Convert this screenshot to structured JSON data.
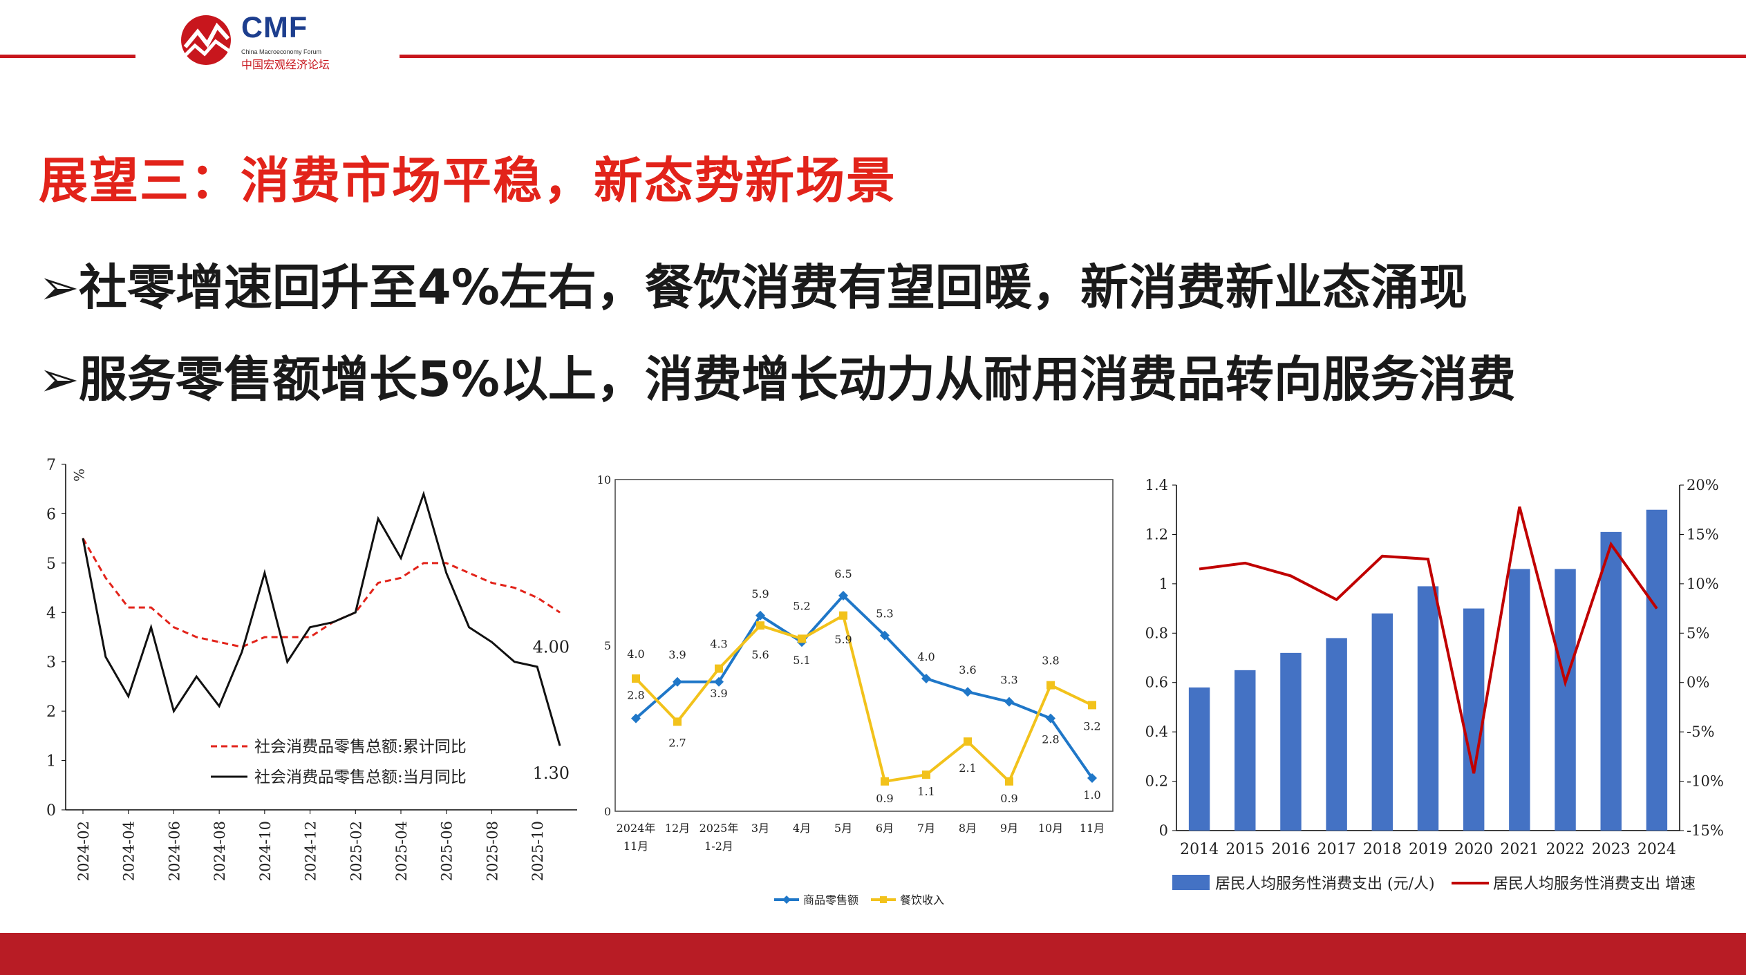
{
  "header": {
    "logo_name": "CMF",
    "logo_sub": "China Macroeconomy Forum",
    "logo_cn": "中国宏观经济论坛"
  },
  "title": "展望三：消费市场平稳，新态势新场景",
  "bullets": [
    "社零增速回升至4%左右，餐饮消费有望回暖，新消费新业态涌现",
    "服务零售额增长5%以上，消费增长动力从耐用消费品转向服务消费"
  ],
  "colors": {
    "accent": "#e2231a",
    "brand": "#1d3e8e",
    "footer": "#b81c25"
  },
  "chart_data": [
    {
      "type": "line",
      "ylabel": "%",
      "ylim": [
        0,
        7
      ],
      "yticks": [
        "0",
        "1",
        "2",
        "3",
        "4",
        "5",
        "6",
        "7"
      ],
      "x": [
        "2024-02",
        "2024-03",
        "2024-04",
        "2024-05",
        "2024-06",
        "2024-07",
        "2024-08",
        "2024-09",
        "2024-10",
        "2024-11",
        "2024-12",
        "2025-01",
        "2025-02",
        "2025-03",
        "2025-04",
        "2025-05",
        "2025-06",
        "2025-07",
        "2025-08",
        "2025-09",
        "2025-10",
        "2025-11"
      ],
      "xticks": [
        "2024-02",
        "2024-04",
        "2024-06",
        "2024-08",
        "2024-10",
        "2024-12",
        "2025-02",
        "2025-04",
        "2025-06",
        "2025-08",
        "2025-10"
      ],
      "series": [
        {
          "name": "社会消费品零售总额:累计同比",
          "color": "#e2231a",
          "dashed": true,
          "values": [
            5.5,
            4.7,
            4.1,
            4.1,
            3.7,
            3.5,
            3.4,
            3.3,
            3.5,
            3.5,
            3.5,
            3.8,
            4.0,
            4.6,
            4.7,
            5.0,
            5.0,
            4.8,
            4.6,
            4.5,
            4.3,
            4.0
          ]
        },
        {
          "name": "社会消费品零售总额:当月同比",
          "color": "#111111",
          "dashed": false,
          "values": [
            5.5,
            3.1,
            2.3,
            3.7,
            2.0,
            2.7,
            2.1,
            3.2,
            4.8,
            3.0,
            3.7,
            3.8,
            4.0,
            5.9,
            5.1,
            6.4,
            4.8,
            3.7,
            3.4,
            3.0,
            2.9,
            1.3
          ]
        }
      ],
      "end_labels": [
        "4.00",
        "1.30"
      ]
    },
    {
      "type": "line",
      "ylim": [
        0,
        10
      ],
      "yticks": [
        "0",
        "5",
        "10"
      ],
      "categories": [
        "2024年|11月",
        "12月",
        "2025年|1-2月",
        "3月",
        "4月",
        "5月",
        "6月",
        "7月",
        "8月",
        "9月",
        "10月",
        "11月"
      ],
      "series": [
        {
          "name": "商品零售额",
          "color": "#1f77c8",
          "values": [
            2.8,
            3.9,
            3.9,
            5.9,
            5.1,
            6.5,
            5.3,
            4.0,
            3.6,
            3.3,
            2.8,
            1.0
          ],
          "labels": [
            "2.8",
            "3.9",
            "3.9",
            "5.9",
            "5.1",
            "6.5",
            "5.3",
            "4.0",
            "3.6",
            "3.3",
            "2.8",
            "1.0"
          ]
        },
        {
          "name": "餐饮收入",
          "color": "#f2c21b",
          "values": [
            4.0,
            2.7,
            4.3,
            5.6,
            5.2,
            5.9,
            0.9,
            1.1,
            2.1,
            0.9,
            3.8,
            3.2
          ],
          "labels": [
            "4.0",
            "2.7",
            "4.3",
            "5.6",
            "5.2",
            "5.9",
            "0.9",
            "1.1",
            "2.1",
            "0.9",
            "3.8",
            "3.2"
          ]
        }
      ]
    },
    {
      "type": "bar",
      "categories": [
        "2014",
        "2015",
        "2016",
        "2017",
        "2018",
        "2019",
        "2020",
        "2021",
        "2022",
        "2023",
        "2024"
      ],
      "ylim": [
        0,
        1.4
      ],
      "yticks": [
        "0",
        "0.2",
        "0.4",
        "0.6",
        "0.8",
        "1",
        "1.2",
        "1.4"
      ],
      "y2lim": [
        -15,
        20
      ],
      "y2ticks": [
        "-15%",
        "-10%",
        "-5%",
        "0%",
        "5%",
        "10%",
        "15%",
        "20%"
      ],
      "series": [
        {
          "name": "居民人均服务性消费支出 (元/人)",
          "color": "#4472c4",
          "type": "bar",
          "values": [
            0.58,
            0.65,
            0.72,
            0.78,
            0.88,
            0.99,
            0.9,
            1.06,
            1.06,
            1.21,
            1.3
          ]
        },
        {
          "name": "居民人均服务性消费支出 增速",
          "color": "#c00000",
          "type": "line",
          "axis": "right",
          "values": [
            11.5,
            12.1,
            10.8,
            8.4,
            12.8,
            12.5,
            -9.2,
            17.8,
            0.0,
            14.0,
            7.5
          ]
        }
      ]
    }
  ]
}
